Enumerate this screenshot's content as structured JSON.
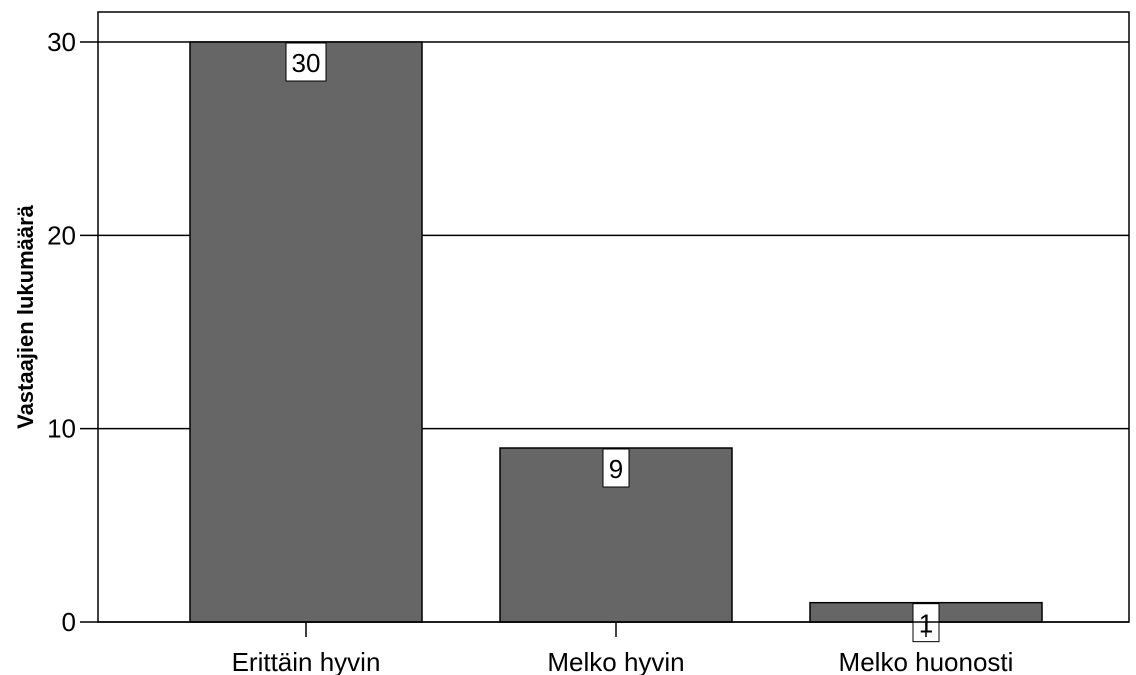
{
  "chart_data": {
    "type": "bar",
    "title": "",
    "xlabel": "",
    "ylabel": "Vastaajien lukumäärä",
    "categories": [
      "Erittäin hyvin",
      "Melko hyvin",
      "Melko huonosti"
    ],
    "values": [
      30,
      9,
      1
    ],
    "data_labels": [
      "30",
      "9",
      "1"
    ],
    "ylim": [
      0,
      30
    ],
    "yticks": [
      0,
      10,
      20,
      30
    ],
    "ytick_labels": [
      "0",
      "10",
      "20",
      "30"
    ],
    "grid": true,
    "legend": "none",
    "colors": {
      "bar": "#666666",
      "bar_edge": "#000000",
      "grid": "#000000",
      "background": "#ffffff",
      "label_box": "#ffffff"
    }
  }
}
